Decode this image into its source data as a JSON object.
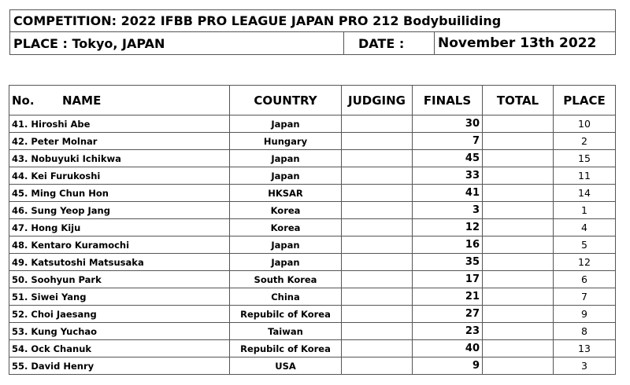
{
  "header": {
    "competition": "COMPETITION: 2022 IFBB PRO LEAGUE JAPAN PRO 212 Bodybuiliding",
    "place": "PLACE : Tokyo, JAPAN",
    "date_label": "DATE :",
    "date_value": "November 13th 2022"
  },
  "table": {
    "columns": {
      "no": "No.",
      "name": "NAME",
      "country": "COUNTRY",
      "judging": "JUDGING",
      "finals": "FINALS",
      "total": "TOTAL",
      "place": "PLACE"
    },
    "rows": [
      {
        "name": "41.  Hiroshi Abe",
        "country": "Japan",
        "judging": "",
        "finals": "30",
        "total": "",
        "place": "10"
      },
      {
        "name": "42.  Peter Molnar",
        "country": "Hungary",
        "judging": "",
        "finals": "7",
        "total": "",
        "place": "2"
      },
      {
        "name": "43.  Nobuyuki Ichikwa",
        "country": "Japan",
        "judging": "",
        "finals": "45",
        "total": "",
        "place": "15"
      },
      {
        "name": "44.  Kei Furukoshi",
        "country": "Japan",
        "judging": "",
        "finals": "33",
        "total": "",
        "place": "11"
      },
      {
        "name": "45.  Ming Chun Hon",
        "country": "HKSAR",
        "judging": "",
        "finals": "41",
        "total": "",
        "place": "14"
      },
      {
        "name": "46.  Sung Yeop Jang",
        "country": "Korea",
        "judging": "",
        "finals": "3",
        "total": "",
        "place": "1"
      },
      {
        "name": "47.  Hong Kiju",
        "country": "Korea",
        "judging": "",
        "finals": "12",
        "total": "",
        "place": "4"
      },
      {
        "name": "48.  Kentaro Kuramochi",
        "country": "Japan",
        "judging": "",
        "finals": "16",
        "total": "",
        "place": "5"
      },
      {
        "name": "49.  Katsutoshi Matsusaka",
        "country": "Japan",
        "judging": "",
        "finals": "35",
        "total": "",
        "place": "12"
      },
      {
        "name": "50.  Soohyun Park",
        "country": "South Korea",
        "judging": "",
        "finals": "17",
        "total": "",
        "place": "6"
      },
      {
        "name": "51.  Siwei Yang",
        "country": "China",
        "judging": "",
        "finals": "21",
        "total": "",
        "place": "7"
      },
      {
        "name": "52.  Choi Jaesang",
        "country": "Repubilc of Korea",
        "judging": "",
        "finals": "27",
        "total": "",
        "place": "9"
      },
      {
        "name": "53.  Kung Yuchao",
        "country": "Taiwan",
        "judging": "",
        "finals": "23",
        "total": "",
        "place": "8"
      },
      {
        "name": "54.  Ock Chanuk",
        "country": "Repubilc of Korea",
        "judging": "",
        "finals": "40",
        "total": "",
        "place": "13"
      },
      {
        "name": "55.  David Henry",
        "country": "USA",
        "judging": "",
        "finals": "9",
        "total": "",
        "place": "3"
      }
    ]
  }
}
